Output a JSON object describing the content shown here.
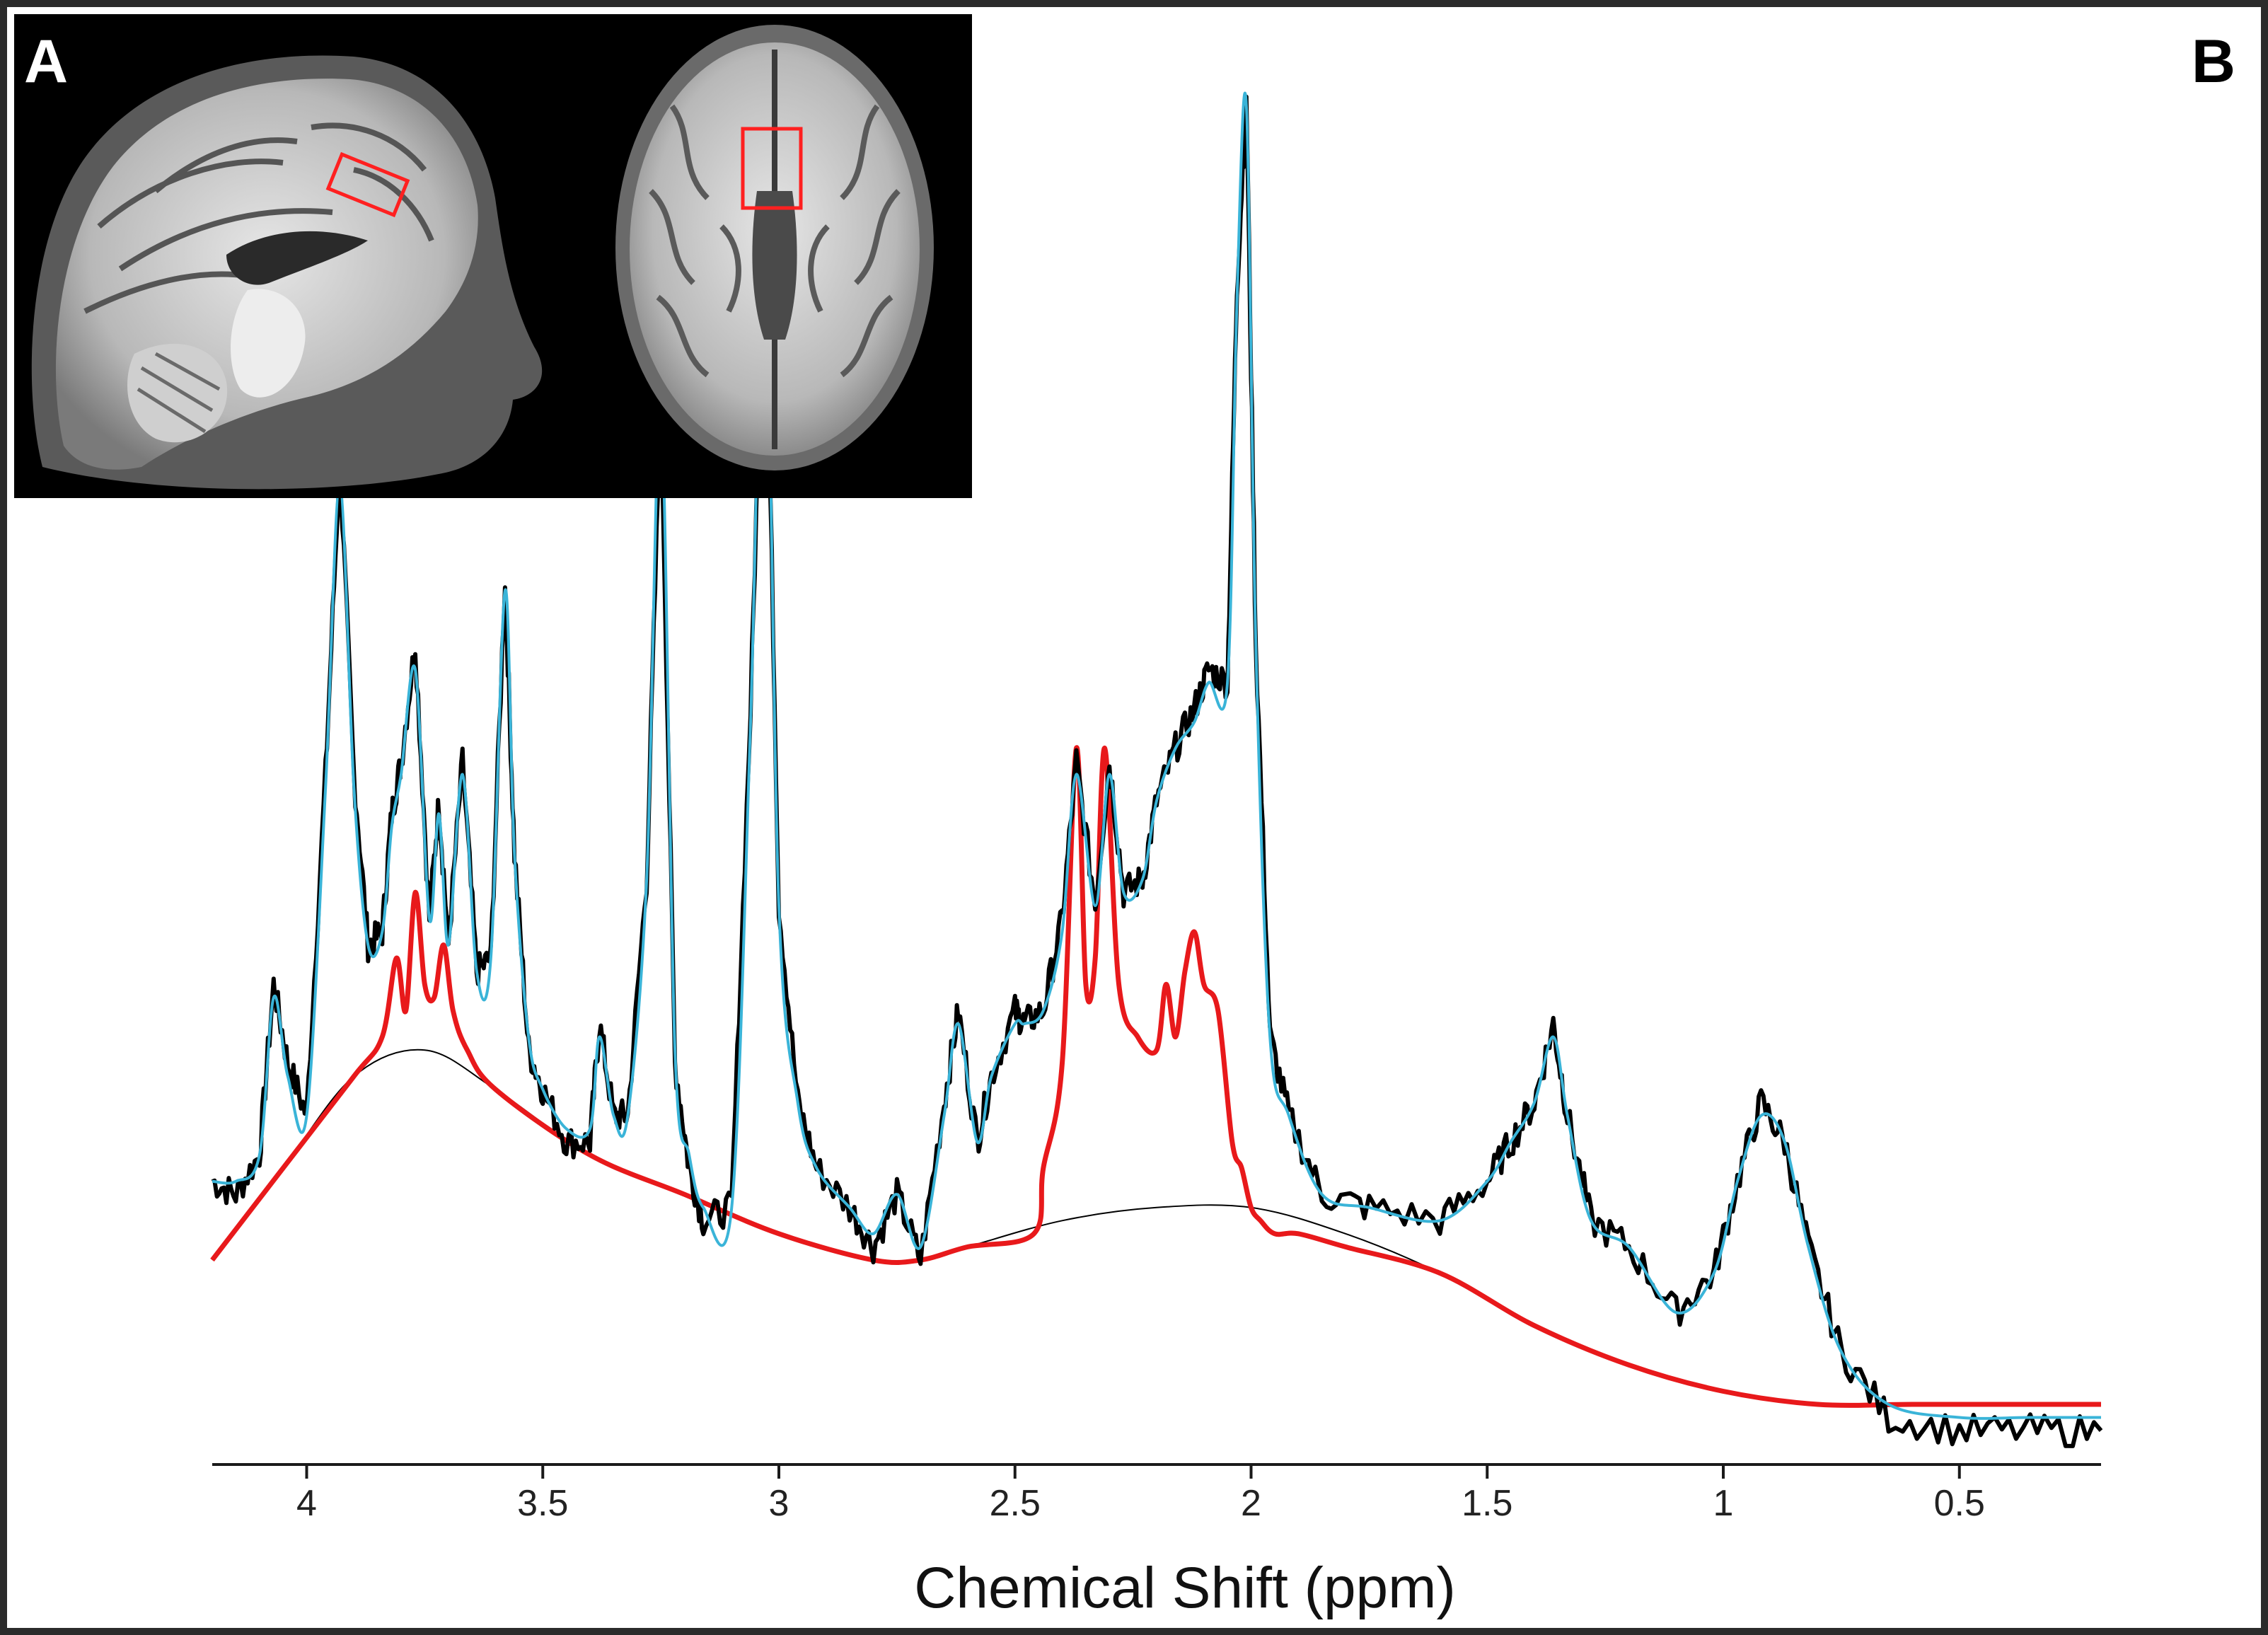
{
  "panels": {
    "a_label": "A",
    "b_label": "B"
  },
  "chart_data": {
    "type": "line",
    "xlabel": "Chemical Shift (ppm)",
    "ylabel": "",
    "title": "",
    "x_reversed": true,
    "xlim": [
      4.2,
      0.2
    ],
    "ylim": [
      0,
      1
    ],
    "x_ticks": [
      4,
      3.5,
      3,
      2.5,
      2,
      1.5,
      1,
      0.5
    ],
    "x_tick_labels": [
      "4",
      "3.5",
      "3",
      "2.5",
      "2",
      "1.5",
      "1",
      "0.5"
    ],
    "grid": false,
    "legend": "none",
    "colors": {
      "data": "#000000",
      "fit": "#3ab4d8",
      "gaba": "#e8191b",
      "baseline": "#000000",
      "voxel": "#ff2020"
    },
    "series": [
      {
        "role": "data",
        "color": "#000000",
        "x": [
          4.2,
          4.15,
          4.1,
          4.07,
          4.04,
          4.0,
          3.96,
          3.93,
          3.9,
          3.87,
          3.84,
          3.82,
          3.8,
          3.77,
          3.74,
          3.72,
          3.7,
          3.67,
          3.64,
          3.61,
          3.58,
          3.56,
          3.53,
          3.5,
          3.45,
          3.4,
          3.38,
          3.35,
          3.32,
          3.28,
          3.25,
          3.22,
          3.19,
          3.16,
          3.1,
          3.06,
          3.03,
          3.0,
          2.96,
          2.92,
          2.85,
          2.8,
          2.75,
          2.7,
          2.65,
          2.62,
          2.58,
          2.55,
          2.5,
          2.48,
          2.44,
          2.4,
          2.37,
          2.33,
          2.3,
          2.27,
          2.23,
          2.2,
          2.16,
          2.12,
          2.09,
          2.05,
          2.03,
          2.01,
          1.99,
          1.96,
          1.92,
          1.85,
          1.75,
          1.6,
          1.5,
          1.45,
          1.4,
          1.36,
          1.33,
          1.28,
          1.2,
          1.1,
          1.02,
          0.97,
          0.92,
          0.87,
          0.82,
          0.75,
          0.65,
          0.5,
          0.35,
          0.2
        ],
        "y": [
          0.17,
          0.16,
          0.19,
          0.32,
          0.26,
          0.22,
          0.48,
          0.72,
          0.48,
          0.35,
          0.36,
          0.45,
          0.49,
          0.58,
          0.37,
          0.46,
          0.35,
          0.49,
          0.33,
          0.34,
          0.63,
          0.42,
          0.27,
          0.24,
          0.2,
          0.2,
          0.29,
          0.22,
          0.22,
          0.4,
          0.77,
          0.26,
          0.18,
          0.14,
          0.15,
          0.53,
          0.9,
          0.38,
          0.23,
          0.18,
          0.15,
          0.12,
          0.16,
          0.11,
          0.23,
          0.3,
          0.2,
          0.25,
          0.3,
          0.29,
          0.3,
          0.37,
          0.49,
          0.38,
          0.49,
          0.39,
          0.4,
          0.46,
          0.5,
          0.53,
          0.56,
          0.55,
          0.85,
          1.0,
          0.58,
          0.28,
          0.22,
          0.16,
          0.15,
          0.14,
          0.17,
          0.2,
          0.23,
          0.29,
          0.22,
          0.14,
          0.12,
          0.07,
          0.1,
          0.17,
          0.23,
          0.2,
          0.12,
          0.04,
          -0.01,
          -0.02,
          -0.02,
          -0.02
        ]
      },
      {
        "role": "fit",
        "color": "#3ab4d8",
        "x": [
          4.2,
          4.15,
          4.1,
          4.07,
          4.04,
          4.0,
          3.96,
          3.93,
          3.9,
          3.87,
          3.84,
          3.82,
          3.8,
          3.77,
          3.74,
          3.72,
          3.7,
          3.67,
          3.64,
          3.61,
          3.58,
          3.56,
          3.53,
          3.5,
          3.45,
          3.4,
          3.38,
          3.35,
          3.32,
          3.28,
          3.25,
          3.22,
          3.19,
          3.16,
          3.1,
          3.06,
          3.03,
          3.0,
          2.96,
          2.92,
          2.85,
          2.8,
          2.75,
          2.7,
          2.65,
          2.62,
          2.58,
          2.55,
          2.5,
          2.48,
          2.44,
          2.4,
          2.37,
          2.33,
          2.3,
          2.27,
          2.23,
          2.2,
          2.16,
          2.12,
          2.09,
          2.05,
          2.03,
          2.01,
          1.99,
          1.96,
          1.92,
          1.85,
          1.75,
          1.6,
          1.5,
          1.45,
          1.4,
          1.36,
          1.33,
          1.28,
          1.2,
          1.1,
          1.02,
          0.97,
          0.92,
          0.87,
          0.82,
          0.75,
          0.65,
          0.5,
          0.35,
          0.2
        ],
        "y": [
          0.17,
          0.17,
          0.19,
          0.31,
          0.25,
          0.22,
          0.47,
          0.7,
          0.47,
          0.35,
          0.36,
          0.44,
          0.48,
          0.56,
          0.37,
          0.45,
          0.35,
          0.48,
          0.33,
          0.34,
          0.62,
          0.42,
          0.28,
          0.24,
          0.21,
          0.21,
          0.28,
          0.22,
          0.22,
          0.4,
          0.76,
          0.27,
          0.19,
          0.15,
          0.15,
          0.52,
          0.89,
          0.38,
          0.23,
          0.18,
          0.15,
          0.13,
          0.16,
          0.12,
          0.22,
          0.29,
          0.2,
          0.25,
          0.29,
          0.29,
          0.3,
          0.36,
          0.48,
          0.38,
          0.48,
          0.39,
          0.4,
          0.46,
          0.5,
          0.52,
          0.55,
          0.55,
          0.84,
          0.99,
          0.58,
          0.28,
          0.22,
          0.16,
          0.15,
          0.14,
          0.17,
          0.2,
          0.23,
          0.28,
          0.22,
          0.14,
          0.12,
          0.07,
          0.1,
          0.17,
          0.22,
          0.2,
          0.12,
          0.04,
          0.0,
          -0.01,
          -0.01,
          -0.01
        ]
      },
      {
        "role": "baseline",
        "color": "#000000",
        "x": [
          4.2,
          4.05,
          3.9,
          3.75,
          3.6,
          3.4,
          3.2,
          3.0,
          2.8,
          2.7,
          2.6,
          2.4,
          2.2,
          2.0,
          1.8,
          1.6,
          1.4,
          1.2,
          1.0,
          0.8,
          0.6,
          0.4,
          0.2
        ],
        "y": [
          0.11,
          0.18,
          0.25,
          0.27,
          0.24,
          0.19,
          0.16,
          0.13,
          0.11,
          0.11,
          0.12,
          0.14,
          0.15,
          0.15,
          0.13,
          0.1,
          0.06,
          0.03,
          0.01,
          0.0,
          0.0,
          0.0,
          0.0
        ]
      },
      {
        "role": "gaba",
        "color": "#e8191b",
        "x": [
          4.2,
          4.05,
          3.9,
          3.84,
          3.81,
          3.79,
          3.77,
          3.75,
          3.73,
          3.71,
          3.69,
          3.66,
          3.6,
          3.4,
          3.2,
          3.0,
          2.8,
          2.7,
          2.6,
          2.46,
          2.44,
          2.4,
          2.37,
          2.35,
          2.33,
          2.31,
          2.28,
          2.24,
          2.2,
          2.18,
          2.16,
          2.14,
          2.12,
          2.1,
          2.07,
          2.04,
          2.02,
          2.0,
          1.98,
          1.95,
          1.9,
          1.8,
          1.6,
          1.4,
          1.2,
          1.0,
          0.8,
          0.6,
          0.4,
          0.2
        ],
        "y": [
          0.11,
          0.18,
          0.25,
          0.28,
          0.34,
          0.3,
          0.39,
          0.32,
          0.31,
          0.35,
          0.3,
          0.27,
          0.24,
          0.19,
          0.16,
          0.13,
          0.11,
          0.11,
          0.12,
          0.13,
          0.18,
          0.26,
          0.5,
          0.32,
          0.34,
          0.5,
          0.32,
          0.28,
          0.27,
          0.32,
          0.28,
          0.33,
          0.36,
          0.32,
          0.3,
          0.2,
          0.18,
          0.15,
          0.14,
          0.13,
          0.13,
          0.12,
          0.1,
          0.06,
          0.03,
          0.01,
          0.0,
          0.0,
          0.0,
          0.0
        ]
      }
    ]
  }
}
